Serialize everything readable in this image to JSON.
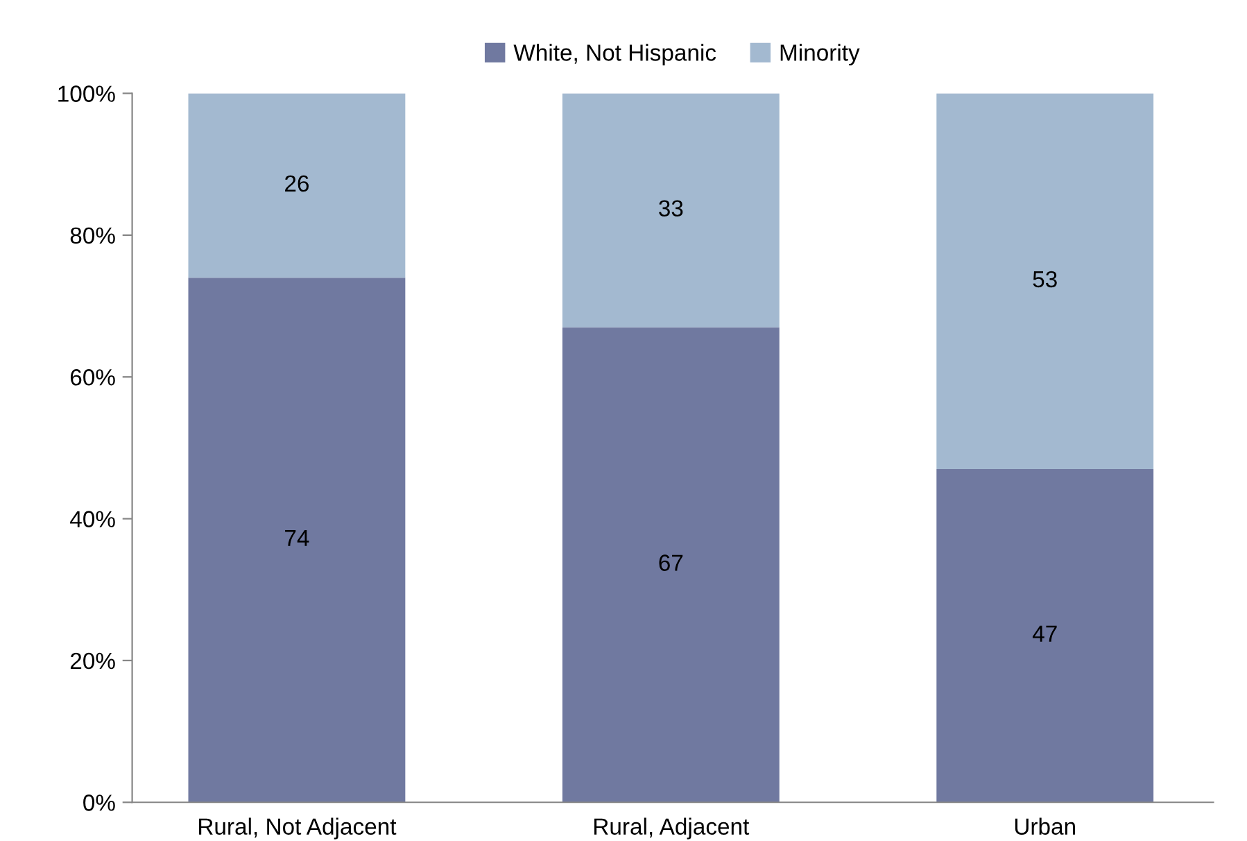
{
  "chart_data": {
    "type": "bar",
    "stacked": true,
    "categories": [
      "Rural, Not Adjacent",
      "Rural, Adjacent",
      "Urban"
    ],
    "series": [
      {
        "name": "White, Not Hispanic",
        "color": "#7079a0",
        "values": [
          74,
          67,
          47
        ]
      },
      {
        "name": "Minority",
        "color": "#a3b9d0",
        "values": [
          26,
          33,
          53
        ]
      }
    ],
    "ylim": [
      0,
      100
    ],
    "yticks": [
      {
        "value": 0,
        "label": "0%"
      },
      {
        "value": 20,
        "label": "20%"
      },
      {
        "value": 40,
        "label": "40%"
      },
      {
        "value": 60,
        "label": "60%"
      },
      {
        "value": 80,
        "label": "80%"
      },
      {
        "value": 100,
        "label": "100%"
      }
    ],
    "data_labels": true,
    "legend": "top",
    "grid": false
  }
}
